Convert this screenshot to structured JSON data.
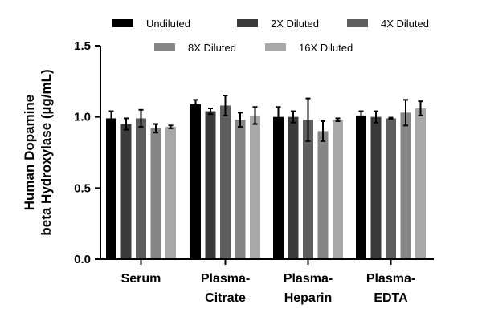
{
  "chart_data": {
    "type": "bar",
    "title": "",
    "xlabel": "",
    "ylabel_lines": [
      "Human Dopamine",
      "beta Hydroxylase (µg/mL)"
    ],
    "ylim": [
      0,
      1.5
    ],
    "yticks": [
      0.0,
      0.5,
      1.0,
      1.5
    ],
    "ytick_labels": [
      "0.0",
      "0.5",
      "1.0",
      "1.5"
    ],
    "categories": [
      {
        "lines": [
          "Serum"
        ]
      },
      {
        "lines": [
          "Plasma-",
          "Citrate"
        ]
      },
      {
        "lines": [
          "Plasma-",
          "Heparin"
        ]
      },
      {
        "lines": [
          "Plasma-",
          "EDTA"
        ]
      }
    ],
    "legend_placement": "top",
    "series": [
      {
        "name": "Undiluted",
        "color": "#000000",
        "values": [
          0.99,
          1.09,
          1.0,
          1.01
        ],
        "errors": [
          0.05,
          0.03,
          0.07,
          0.03
        ]
      },
      {
        "name": "2X Diluted",
        "color": "#3a3a3a",
        "values": [
          0.95,
          1.04,
          1.0,
          1.0
        ],
        "errors": [
          0.04,
          0.02,
          0.04,
          0.04
        ]
      },
      {
        "name": "4X Diluted",
        "color": "#5e5e5e",
        "values": [
          0.99,
          1.08,
          0.98,
          0.99
        ],
        "errors": [
          0.06,
          0.07,
          0.15,
          0.005
        ]
      },
      {
        "name": "8X Diluted",
        "color": "#858585",
        "values": [
          0.92,
          0.98,
          0.9,
          1.03
        ],
        "errors": [
          0.03,
          0.05,
          0.07,
          0.09
        ]
      },
      {
        "name": "16X Diluted",
        "color": "#a8a8a8",
        "values": [
          0.93,
          1.01,
          0.98,
          1.06
        ],
        "errors": [
          0.01,
          0.06,
          0.01,
          0.05
        ]
      }
    ]
  }
}
